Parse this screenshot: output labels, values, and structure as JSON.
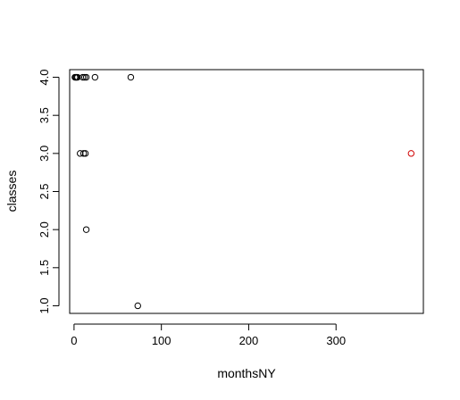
{
  "chart_data": {
    "type": "scatter",
    "title": "",
    "xlabel": "monthsNY",
    "ylabel": "classes",
    "xlim": [
      -5,
      400
    ],
    "ylim": [
      0.9,
      4.1
    ],
    "xticks": [
      0,
      100,
      200,
      300
    ],
    "yticks": [
      "1.0",
      "1.5",
      "2.0",
      "2.5",
      "3.0",
      "3.5",
      "4.0"
    ],
    "grid": false,
    "legend": "none",
    "series": [
      {
        "color": "#000000",
        "points": [
          {
            "x": 1,
            "y": 4
          },
          {
            "x": 2,
            "y": 4
          },
          {
            "x": 3,
            "y": 4
          },
          {
            "x": 4,
            "y": 4
          },
          {
            "x": 10,
            "y": 4
          },
          {
            "x": 12,
            "y": 4
          },
          {
            "x": 14,
            "y": 4
          },
          {
            "x": 24,
            "y": 4
          },
          {
            "x": 65,
            "y": 4
          },
          {
            "x": 7,
            "y": 3
          },
          {
            "x": 11,
            "y": 3
          },
          {
            "x": 13,
            "y": 3
          },
          {
            "x": 14,
            "y": 2
          },
          {
            "x": 73,
            "y": 1
          }
        ]
      },
      {
        "color": "#d00000",
        "points": [
          {
            "x": 386,
            "y": 3
          }
        ]
      }
    ]
  }
}
